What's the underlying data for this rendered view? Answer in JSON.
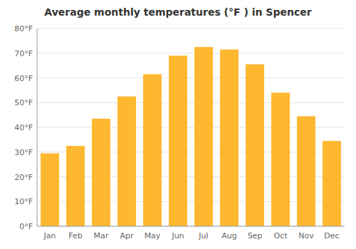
{
  "chart_data": {
    "type": "bar",
    "title": "Average monthly temperatures (°F ) in Spencer",
    "categories": [
      "Jan",
      "Feb",
      "Mar",
      "Apr",
      "May",
      "Jun",
      "Jul",
      "Aug",
      "Sep",
      "Oct",
      "Nov",
      "Dec"
    ],
    "values": [
      29.5,
      32.5,
      43.5,
      52.5,
      61.5,
      69.0,
      72.5,
      71.5,
      65.5,
      54.0,
      44.5,
      34.5
    ],
    "color": "#FDB830",
    "ylim": [
      0,
      80
    ],
    "yticks": [
      {
        "value": 0,
        "label": "0°F"
      },
      {
        "value": 10,
        "label": "10°F"
      },
      {
        "value": 20,
        "label": "20°F"
      },
      {
        "value": 30,
        "label": "30°F"
      },
      {
        "value": 40,
        "label": "40°F"
      },
      {
        "value": 50,
        "label": "50°F"
      },
      {
        "value": 60,
        "label": "60°F"
      },
      {
        "value": 70,
        "label": "70°F"
      },
      {
        "value": 80,
        "label": "80°F"
      }
    ],
    "grid": true
  }
}
